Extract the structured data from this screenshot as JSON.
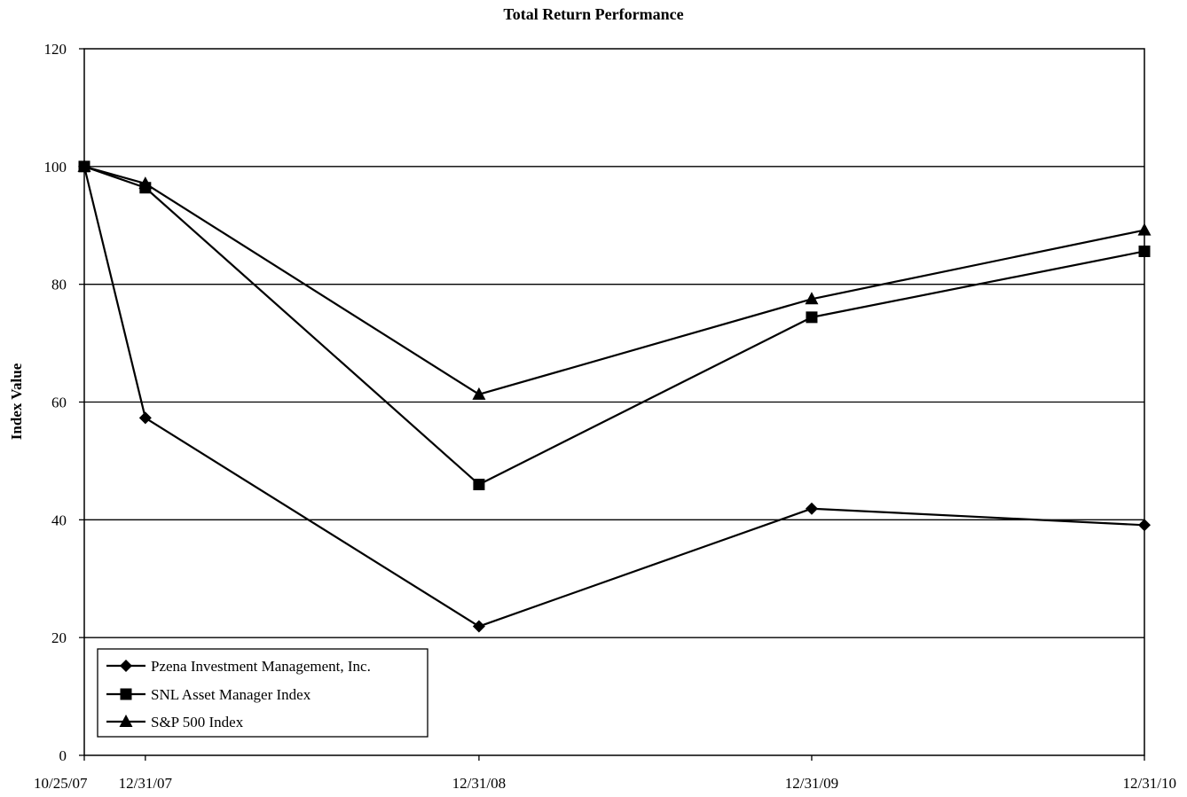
{
  "chart_data": {
    "type": "line",
    "title": "Total Return Performance",
    "xlabel": "",
    "ylabel": "Index Value",
    "ylim": [
      0,
      120
    ],
    "yticks": [
      0,
      20,
      40,
      60,
      80,
      100,
      120
    ],
    "categories": [
      "10/25/07",
      "12/31/07",
      "12/31/08",
      "12/31/09",
      "12/31/10"
    ],
    "x": [
      "2007-10-25",
      "2007-12-31",
      "2008-12-31",
      "2009-12-31",
      "2010-12-31"
    ],
    "grid": true,
    "legend_position": "bottom-left",
    "series": [
      {
        "name": "Pzena Investment Management, Inc.",
        "marker": "diamond",
        "values": [
          100,
          57.3,
          21.9,
          41.9,
          39.1
        ]
      },
      {
        "name": "SNL Asset Manager Index",
        "marker": "square",
        "values": [
          100,
          96.4,
          46.0,
          74.4,
          85.6
        ]
      },
      {
        "name": "S&P 500 Index",
        "marker": "triangle",
        "values": [
          100,
          97.1,
          61.3,
          77.5,
          89.2
        ]
      }
    ]
  }
}
